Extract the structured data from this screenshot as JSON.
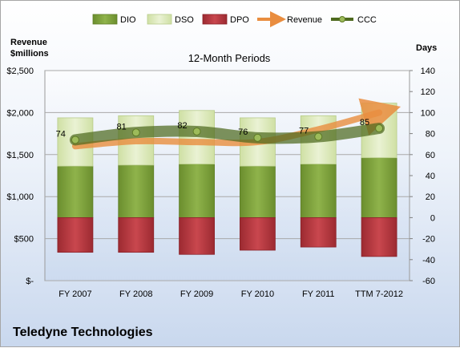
{
  "chart_data": {
    "type": "bar",
    "title": "12-Month Periods",
    "company": "Teledyne Technologies",
    "left_axis_label": "Revenue $millions",
    "right_axis_label": "Days",
    "left_axis": {
      "range": [
        0,
        2500
      ],
      "ticks": [
        "$-",
        "$500",
        "$1,000",
        "$1,500",
        "$2,000",
        "$2,500"
      ]
    },
    "right_axis": {
      "range": [
        -60,
        140
      ],
      "ticks": [
        -60,
        -40,
        -20,
        0,
        20,
        40,
        60,
        80,
        100,
        120,
        140
      ]
    },
    "categories": [
      "FY 2007",
      "FY 2008",
      "FY 2009",
      "FY 2010",
      "FY 2011",
      "TTM 7-2012"
    ],
    "legend": [
      "DIO",
      "DSO",
      "DPO",
      "Revenue",
      "CCC"
    ],
    "legend_position": "top",
    "colors": {
      "DIO": "#7ea13e",
      "DSO": "#dce9b8",
      "DPO": "#b5363d",
      "Revenue": "#e98d3f",
      "CCC": "#4e6a1f"
    },
    "series": [
      {
        "name": "DIO",
        "values": [
          49,
          50,
          51,
          49,
          51,
          57
        ]
      },
      {
        "name": "DSO",
        "values": [
          46,
          47,
          51,
          46,
          46,
          52
        ]
      },
      {
        "name": "DPO",
        "values": [
          -33,
          -33,
          -35,
          -31,
          -28,
          -37
        ]
      },
      {
        "name": "Revenue",
        "values": [
          1600,
          1660,
          1650,
          1650,
          1800,
          2000
        ]
      },
      {
        "name": "CCC",
        "values": [
          74,
          81,
          82,
          76,
          77,
          85
        ]
      }
    ]
  }
}
